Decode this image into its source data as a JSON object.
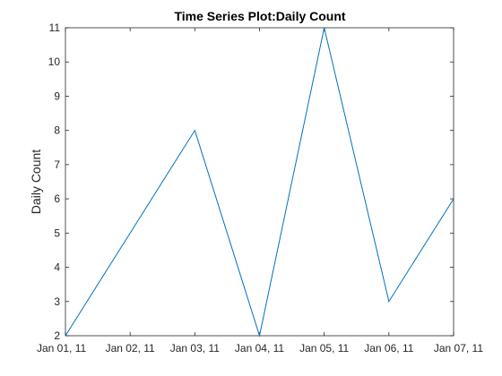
{
  "chart_data": {
    "type": "line",
    "title": "Time Series Plot:Daily Count",
    "xlabel": "",
    "ylabel": "Daily Count",
    "x": [
      "Jan 01, 11",
      "Jan 02, 11",
      "Jan 03, 11",
      "Jan 04, 11",
      "Jan 05, 11",
      "Jan 06, 11",
      "Jan 07, 11"
    ],
    "x_tick_labels": [
      "Jan 01, 11",
      "Jan 02, 11",
      "Jan 03, 11",
      "Jan 04, 11",
      "Jan 05, 11",
      "Jan 06, 11",
      "Jan 07, 11"
    ],
    "series": [
      {
        "values": [
          2,
          5,
          8,
          2,
          11,
          3,
          6
        ],
        "color": "#0072BD"
      }
    ],
    "ylim": [
      2,
      11
    ],
    "y_ticks": [
      2,
      3,
      4,
      5,
      6,
      7,
      8,
      9,
      10,
      11
    ],
    "grid": false,
    "box": true
  }
}
